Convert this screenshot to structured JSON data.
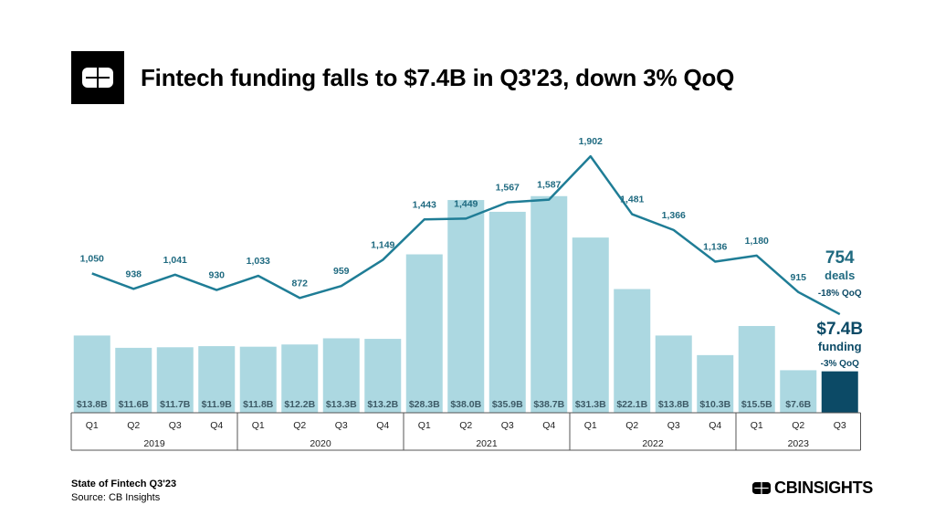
{
  "header": {
    "title": "Fintech funding falls to $7.4B in Q3'23, down 3% QoQ"
  },
  "footer": {
    "report": "State of Fintech Q3'23",
    "source": "Source: CB Insights",
    "brand": "CBINSIGHTS"
  },
  "colors": {
    "bar": "#acd8e1",
    "bar_highlight": "#0c4a66",
    "line": "#1f7d96",
    "deal_label": "#1f6a80"
  },
  "chart_data": {
    "type": "bar",
    "categories": [
      "Q1",
      "Q2",
      "Q3",
      "Q4",
      "Q1",
      "Q2",
      "Q3",
      "Q4",
      "Q1",
      "Q2",
      "Q3",
      "Q4",
      "Q1",
      "Q2",
      "Q3",
      "Q4",
      "Q1",
      "Q2",
      "Q3"
    ],
    "years": [
      {
        "label": "2019",
        "count": 4
      },
      {
        "label": "2020",
        "count": 4
      },
      {
        "label": "2021",
        "count": 4
      },
      {
        "label": "2022",
        "count": 4
      },
      {
        "label": "2023",
        "count": 3
      }
    ],
    "series": [
      {
        "name": "funding",
        "type": "bar",
        "unit": "$B",
        "values": [
          13.8,
          11.6,
          11.7,
          11.9,
          11.8,
          12.2,
          13.3,
          13.2,
          28.3,
          38.0,
          35.9,
          38.7,
          31.3,
          22.1,
          13.8,
          10.3,
          15.5,
          7.6,
          7.4
        ],
        "labels": [
          "$13.8B",
          "$11.6B",
          "$11.7B",
          "$11.9B",
          "$11.8B",
          "$12.2B",
          "$13.3B",
          "$13.2B",
          "$28.3B",
          "$38.0B",
          "$35.9B",
          "$38.7B",
          "$31.3B",
          "$22.1B",
          "$13.8B",
          "$10.3B",
          "$15.5B",
          "$7.6B",
          ""
        ]
      },
      {
        "name": "deals",
        "type": "line",
        "values": [
          1050,
          938,
          1041,
          930,
          1033,
          872,
          959,
          1149,
          1443,
          1449,
          1567,
          1587,
          1902,
          1481,
          1366,
          1136,
          1180,
          915,
          754
        ],
        "labels": [
          "1,050",
          "938",
          "1,041",
          "930",
          "1,033",
          "872",
          "959",
          "1,149",
          "1,443",
          "1,449",
          "1,567",
          "1,587",
          "1,902",
          "1,481",
          "1,366",
          "1,136",
          "1,180",
          "915",
          ""
        ]
      }
    ],
    "callouts": {
      "deals_value": "754",
      "deals_word": "deals",
      "deals_change": "-18% QoQ",
      "funding_value": "$7.4B",
      "funding_word": "funding",
      "funding_change": "-3% QoQ"
    },
    "title": "",
    "xlabel": "",
    "ylabel": "",
    "grid": false,
    "legend": "none"
  }
}
